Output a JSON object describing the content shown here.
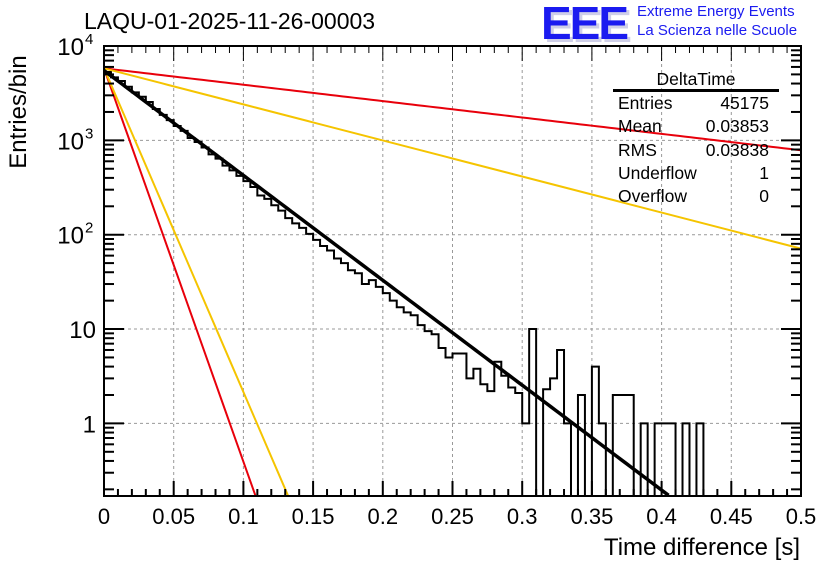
{
  "header": {
    "title": "LAQU-01-2025-11-26-00003",
    "logo": "EEE",
    "logo_line1": "Extreme Energy Events",
    "logo_line2": "La Scienza nelle Scuole"
  },
  "stats_box": {
    "name": "DeltaTime",
    "rows": [
      {
        "label": "Entries",
        "value": "45175"
      },
      {
        "label": "Mean",
        "value": "0.03853"
      },
      {
        "label": "RMS",
        "value": "0.03838"
      },
      {
        "label": "Underflow",
        "value": "1"
      },
      {
        "label": "Overflow",
        "value": "0"
      }
    ]
  },
  "colors": {
    "histogram": "#000000",
    "fit": "#000000",
    "bound_red": "#e8000b",
    "bound_yellow": "#f5c400",
    "grid": "#999999",
    "logo": "#1b1bf0"
  },
  "chart_data": {
    "type": "bar",
    "title": "LAQU-01-2025-11-26-00003",
    "xlabel": "Time difference [s]",
    "ylabel": "Entries/bin",
    "xlim": [
      0,
      0.5
    ],
    "ylim": [
      0.17,
      10000
    ],
    "yscale": "log",
    "grid": true,
    "legend": "top-right stats box",
    "x_ticks": [
      "0",
      "0.05",
      "0.1",
      "0.15",
      "0.2",
      "0.25",
      "0.3",
      "0.35",
      "0.4",
      "0.45",
      "0.5"
    ],
    "x_tick_values": [
      0,
      0.05,
      0.1,
      0.15,
      0.2,
      0.25,
      0.3,
      0.35,
      0.4,
      0.45,
      0.5
    ],
    "y_ticks": [
      "1",
      "10",
      "10^2",
      "10^3",
      "10^4"
    ],
    "y_tick_values": [
      1,
      10,
      100,
      1000,
      10000
    ],
    "bin_width": 0.005,
    "histogram": {
      "name": "DeltaTime",
      "bin_edges_start": 0,
      "values": [
        5300,
        4650,
        4250,
        3700,
        3220,
        2900,
        2550,
        2150,
        1860,
        1640,
        1420,
        1260,
        1060,
        960,
        840,
        710,
        640,
        540,
        480,
        420,
        370,
        320,
        260,
        240,
        205,
        180,
        150,
        132,
        118,
        102,
        88,
        76,
        68,
        56,
        50,
        42,
        39,
        30,
        33,
        28,
        24,
        20,
        17,
        15,
        14,
        11,
        9.5,
        8.8,
        6.3,
        5.0,
        5.5,
        5.5,
        3.0,
        3.8,
        2.6,
        2.2,
        4.5,
        3.2,
        2.4,
        2.1,
        1.0,
        10,
        0,
        2.3,
        3,
        6,
        1,
        0,
        2,
        0,
        4,
        1,
        0,
        2,
        2,
        2,
        0,
        1,
        0,
        1,
        1,
        1,
        0,
        1,
        0,
        1,
        0,
        0,
        0,
        0,
        0,
        0,
        0,
        0,
        0,
        0,
        0,
        0,
        0,
        0
      ]
    },
    "fit": {
      "name": "exponential fit",
      "amplitude": 5500,
      "rate_per_s": 25.6,
      "x_range": [
        0,
        0.405
      ]
    },
    "bounds": [
      {
        "name": "red-slow",
        "color": "red",
        "amplitude": 5800,
        "rate_per_s": 4.0
      },
      {
        "name": "yellow-slow",
        "color": "yellow",
        "amplitude": 5800,
        "rate_per_s": 8.8
      },
      {
        "name": "red-fast",
        "color": "red",
        "amplitude": 5800,
        "rate_per_s": 96
      },
      {
        "name": "yellow-fast",
        "color": "yellow",
        "amplitude": 5800,
        "rate_per_s": 79
      }
    ]
  }
}
